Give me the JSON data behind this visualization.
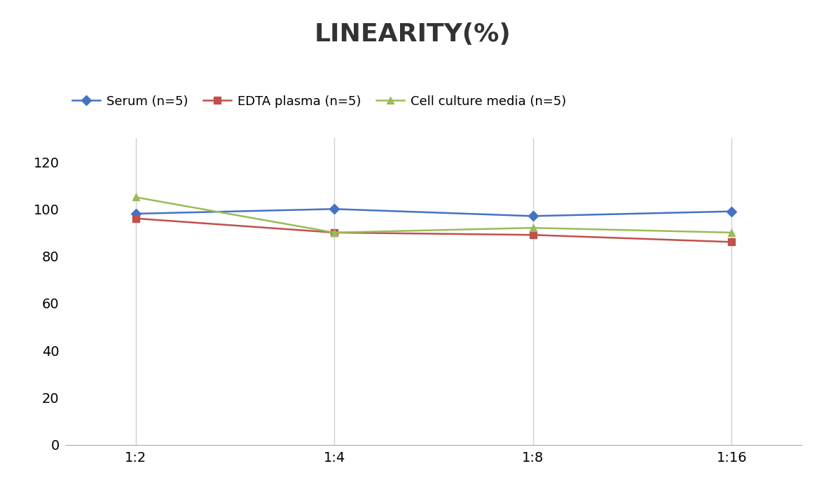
{
  "title": "LINEARITY(%)",
  "x_labels": [
    "1:2",
    "1:4",
    "1:8",
    "1:16"
  ],
  "x_positions": [
    0,
    1,
    2,
    3
  ],
  "series": [
    {
      "name": "Serum (n=5)",
      "values": [
        98,
        100,
        97,
        99
      ],
      "color": "#4472C4",
      "marker": "D",
      "marker_size": 7,
      "linewidth": 1.8
    },
    {
      "name": "EDTA plasma (n=5)",
      "values": [
        96,
        90,
        89,
        86
      ],
      "color": "#C0504D",
      "marker": "s",
      "marker_size": 7,
      "linewidth": 1.8
    },
    {
      "name": "Cell culture media (n=5)",
      "values": [
        105,
        90,
        92,
        90
      ],
      "color": "#9BBB59",
      "marker": "^",
      "marker_size": 7,
      "linewidth": 1.8
    }
  ],
  "ylim": [
    0,
    130
  ],
  "yticks": [
    0,
    20,
    40,
    60,
    80,
    100,
    120
  ],
  "title_fontsize": 26,
  "title_fontweight": "bold",
  "title_color": "#333333",
  "tick_fontsize": 14,
  "legend_fontsize": 13,
  "background_color": "#ffffff",
  "grid_color": "#d0d0d0",
  "spine_color": "#aaaaaa"
}
